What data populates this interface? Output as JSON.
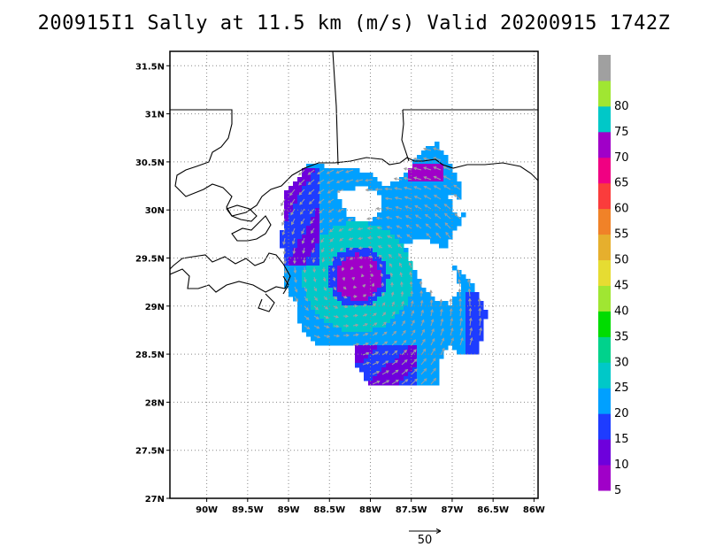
{
  "title": "200915I1 Sally at 11.5 km (m/s) Valid 20200915 1742Z",
  "map": {
    "lon_range": [
      -90.45,
      -85.95
    ],
    "lat_range": [
      27.0,
      31.65
    ],
    "lon_ticks": [
      {
        "value": -90.0,
        "label": "90W"
      },
      {
        "value": -89.5,
        "label": "89.5W"
      },
      {
        "value": -89.0,
        "label": "89W"
      },
      {
        "value": -88.5,
        "label": "88.5W"
      },
      {
        "value": -88.0,
        "label": "88W"
      },
      {
        "value": -87.5,
        "label": "87.5W"
      },
      {
        "value": -87.0,
        "label": "87W"
      },
      {
        "value": -86.5,
        "label": "86.5W"
      },
      {
        "value": -86.0,
        "label": "86W"
      }
    ],
    "lat_ticks": [
      {
        "value": 27.0,
        "label": "27N"
      },
      {
        "value": 27.5,
        "label": "27.5N"
      },
      {
        "value": 28.0,
        "label": "28N"
      },
      {
        "value": 28.5,
        "label": "28.5N"
      },
      {
        "value": 29.0,
        "label": "29N"
      },
      {
        "value": 29.5,
        "label": "29.5N"
      },
      {
        "value": 30.0,
        "label": "30N"
      },
      {
        "value": 30.5,
        "label": "30.5N"
      },
      {
        "value": 31.0,
        "label": "31N"
      },
      {
        "value": 31.5,
        "label": "31.5N"
      }
    ],
    "gridlines": "dotted",
    "center": {
      "lon": -88.15,
      "lat": 29.3
    }
  },
  "colorbar": {
    "levels": [
      {
        "label": "5",
        "color": "#a000c8"
      },
      {
        "label": "10",
        "color": "#6e00dc"
      },
      {
        "label": "15",
        "color": "#1e3cff"
      },
      {
        "label": "20",
        "color": "#00a0ff"
      },
      {
        "label": "25",
        "color": "#00c8c8"
      },
      {
        "label": "30",
        "color": "#00d28c"
      },
      {
        "label": "35",
        "color": "#00dc00"
      },
      {
        "label": "40",
        "color": "#a0e632"
      },
      {
        "label": "45",
        "color": "#e6dc32"
      },
      {
        "label": "50",
        "color": "#e6af2d"
      },
      {
        "label": "55",
        "color": "#f08228"
      },
      {
        "label": "60",
        "color": "#fa3c3c"
      },
      {
        "label": "65",
        "color": "#f00082"
      },
      {
        "label": "70",
        "color": "#a000c8"
      },
      {
        "label": "75",
        "color": "#00c8c8"
      },
      {
        "label": "80",
        "color": "#a0e632"
      },
      {
        "label": "",
        "color": "#a0a0a0"
      }
    ]
  },
  "reference_vector": {
    "label": "50"
  },
  "colors": {
    "coast": "#000000",
    "vector": "#a0a0a0",
    "grid": "#888888"
  }
}
